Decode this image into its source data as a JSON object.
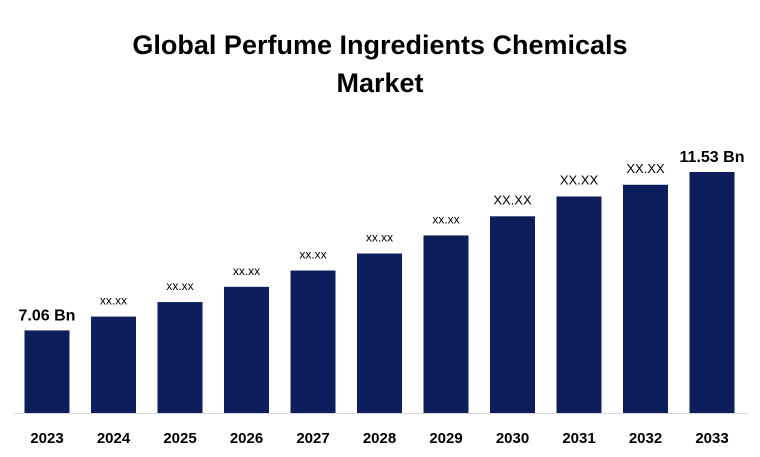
{
  "chart_data": {
    "type": "bar",
    "title_line1": "Global Perfume Ingredients Chemicals",
    "title_line2": "Market",
    "categories": [
      "2023",
      "2024",
      "2025",
      "2026",
      "2027",
      "2028",
      "2029",
      "2030",
      "2031",
      "2032",
      "2033"
    ],
    "values": [
      7.06,
      7.45,
      7.86,
      8.29,
      8.75,
      9.23,
      9.74,
      10.28,
      10.84,
      11.17,
      11.53
    ],
    "data_labels": [
      "7.06 Bn",
      "xx.xx",
      "xx.xx",
      "xx.xx",
      "xx.xx",
      "xx.xx",
      "xx.xx",
      "XX.XX",
      "XX.XX",
      "XX.XX",
      "11.53 Bn"
    ],
    "ylim": [
      4.73,
      11.53
    ],
    "xlabel": "",
    "ylabel": "",
    "grid": false,
    "legend": "none",
    "bar_color": "#0c1f5c"
  }
}
